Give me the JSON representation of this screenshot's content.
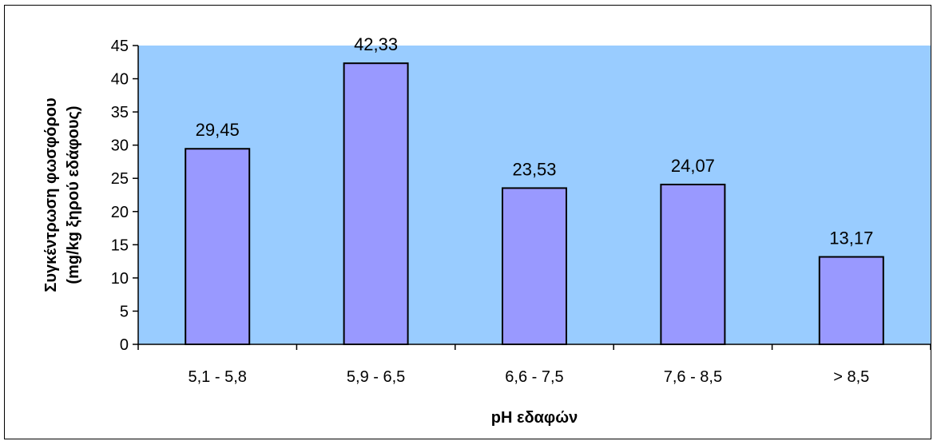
{
  "chart_data": {
    "type": "bar",
    "categories": [
      "5,1 - 5,8",
      "5,9 - 6,5",
      "6,6 - 7,5",
      "7,6 - 8,5",
      "> 8,5"
    ],
    "values": [
      29.45,
      42.33,
      23.53,
      24.07,
      13.17
    ],
    "data_labels": [
      "29,45",
      "42,33",
      "23,53",
      "24,07",
      "13,17"
    ],
    "title": "",
    "xlabel": "pH εδαφών",
    "ylabel_line1": "Συγκέντρωση φωσφόρου",
    "ylabel_line2": "(mg/kg ξηρού εδάφους)",
    "ylim": [
      0,
      45
    ],
    "yticks": [
      0,
      5,
      10,
      15,
      20,
      25,
      30,
      35,
      40,
      45
    ],
    "grid": false,
    "legend": "none"
  },
  "colors": {
    "plot_background": "#99ccff",
    "bar_fill": "#9999ff",
    "bar_stroke": "#000000",
    "axis": "#000000"
  }
}
